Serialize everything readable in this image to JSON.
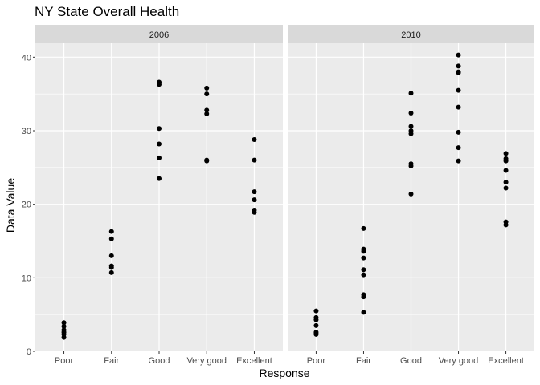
{
  "chart_data": {
    "type": "scatter",
    "title": "NY State Overall Health",
    "xlabel": "Response",
    "ylabel": "Data Value",
    "categories": [
      "Poor",
      "Fair",
      "Good",
      "Very good",
      "Excellent"
    ],
    "ylim": [
      0,
      42
    ],
    "yticks": [
      0,
      10,
      20,
      30,
      40
    ],
    "grid": true,
    "facets": [
      {
        "label": "2006",
        "points": {
          "Poor": [
            3.9,
            3.4,
            2.9,
            2.6,
            2.3,
            1.9
          ],
          "Fair": [
            16.3,
            15.3,
            13.0,
            11.6,
            11.4,
            10.7
          ],
          "Good": [
            36.6,
            36.3,
            30.3,
            28.2,
            26.3,
            23.5
          ],
          "Very good": [
            35.8,
            35.0,
            32.8,
            32.3,
            26.0,
            25.9
          ],
          "Excellent": [
            28.8,
            26.0,
            21.7,
            20.6,
            19.2,
            18.9
          ]
        }
      },
      {
        "label": "2010",
        "points": {
          "Poor": [
            5.5,
            4.6,
            4.3,
            3.5,
            2.6,
            2.4,
            2.3
          ],
          "Fair": [
            16.7,
            13.9,
            13.6,
            12.7,
            11.1,
            10.4,
            7.7,
            7.4,
            5.3
          ],
          "Good": [
            35.1,
            32.4,
            30.6,
            30.0,
            29.6,
            25.5,
            25.2,
            21.4
          ],
          "Very good": [
            40.3,
            38.8,
            38.0,
            37.9,
            35.5,
            33.2,
            29.8,
            27.7,
            25.9
          ],
          "Excellent": [
            26.9,
            26.2,
            25.9,
            24.6,
            23.0,
            22.2,
            17.6,
            17.2
          ]
        }
      }
    ]
  }
}
